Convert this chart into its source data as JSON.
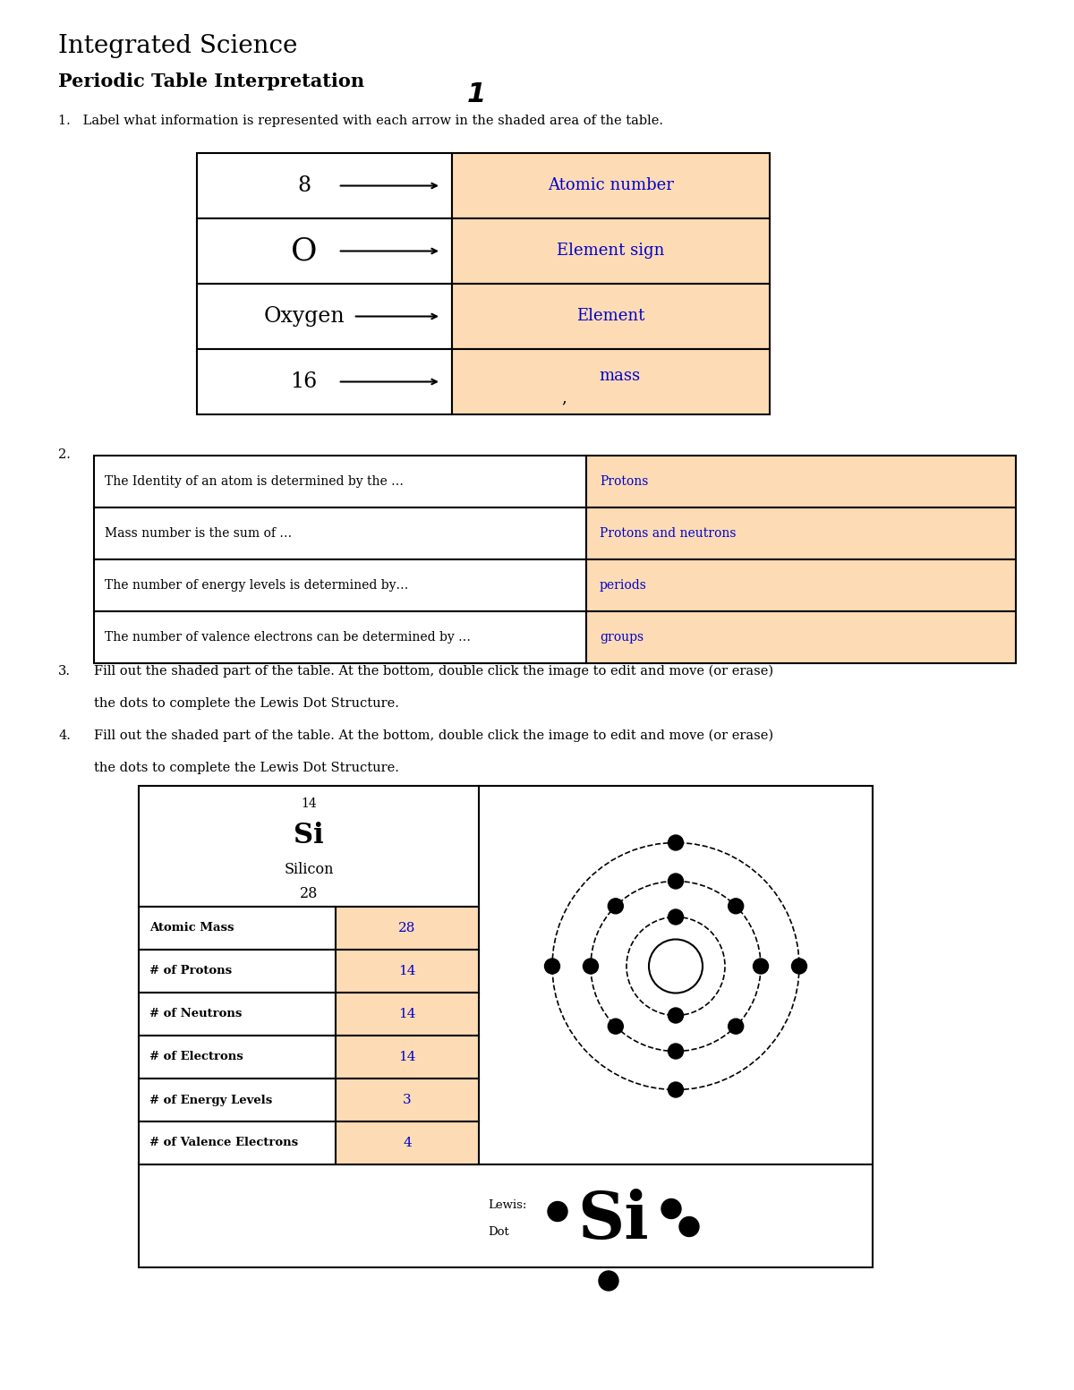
{
  "title1": "Integrated Science",
  "title2": "Periodic Table Interpretation",
  "title2_suffix": "1",
  "bg_color": "#ffffff",
  "peach_color": "#FDDCB5",
  "blue_color": "#0000CC",
  "q1_rows": [
    {
      "left": "8",
      "right": "Atomic number"
    },
    {
      "left": "O",
      "right": "Element sign"
    },
    {
      "left": "Oxygen",
      "right": "Element"
    },
    {
      "left": "16",
      "right": "mass"
    }
  ],
  "q2_rows": [
    {
      "left": "The Identity of an atom is determined by the …",
      "right": "Protons"
    },
    {
      "left": "Mass number is the sum of …",
      "right": "Protons and neutrons"
    },
    {
      "left": "The number of energy levels is determined by…",
      "right": "periods"
    },
    {
      "left": "The number of valence electrons can be determined by …",
      "right": "groups"
    }
  ],
  "si_rows": [
    {
      "label": "Atomic Mass",
      "value": "28"
    },
    {
      "label": "# of Protons",
      "value": "14"
    },
    {
      "label": "# of Neutrons",
      "value": "14"
    },
    {
      "label": "# of Electrons",
      "value": "14"
    },
    {
      "label": "# of Energy Levels",
      "value": "3"
    },
    {
      "label": "# of Valence Electrons",
      "value": "4"
    }
  ],
  "bohr_electrons": [
    2,
    8,
    4
  ],
  "bohr_shell_radii": [
    0.55,
    0.95,
    1.38
  ]
}
